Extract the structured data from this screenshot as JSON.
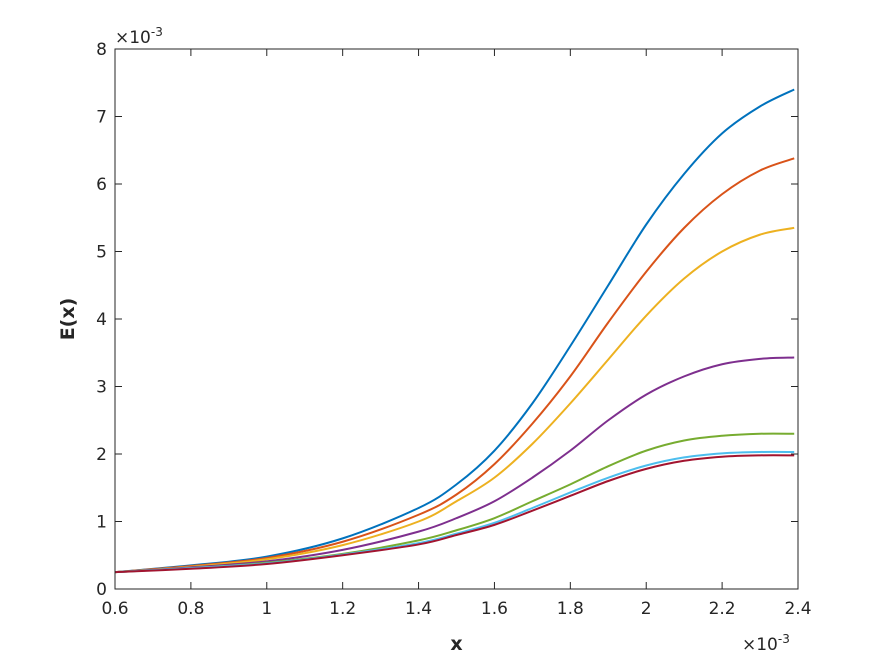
{
  "chart_data": {
    "type": "line",
    "title": "",
    "xlabel": "x",
    "ylabel": "E(x)",
    "x_multiplier": "×10",
    "x_exponent": "-3",
    "y_multiplier": "×10",
    "y_exponent": "-3",
    "xlim": [
      0.6,
      2.4
    ],
    "ylim": [
      0,
      8
    ],
    "x_ticks": [
      "0.6",
      "0.8",
      "1",
      "1.2",
      "1.4",
      "1.6",
      "1.8",
      "2",
      "2.2",
      "2.4"
    ],
    "y_ticks": [
      "0",
      "1",
      "2",
      "3",
      "4",
      "5",
      "6",
      "7",
      "8"
    ],
    "grid": false,
    "box": true,
    "x": [
      0.6,
      0.8,
      1.0,
      1.2,
      1.4,
      1.5,
      1.6,
      1.7,
      1.8,
      1.9,
      2.0,
      2.1,
      2.2,
      2.3,
      2.39
    ],
    "series": [
      {
        "color": "#0072BD",
        "values": [
          0.25,
          0.35,
          0.48,
          0.75,
          1.2,
          1.55,
          2.05,
          2.75,
          3.6,
          4.5,
          5.4,
          6.15,
          6.75,
          7.15,
          7.4
        ]
      },
      {
        "color": "#D95319",
        "values": [
          0.25,
          0.34,
          0.46,
          0.7,
          1.1,
          1.4,
          1.85,
          2.45,
          3.15,
          3.95,
          4.7,
          5.35,
          5.85,
          6.2,
          6.38
        ]
      },
      {
        "color": "#EDB120",
        "values": [
          0.25,
          0.33,
          0.44,
          0.65,
          1.0,
          1.3,
          1.65,
          2.15,
          2.75,
          3.4,
          4.05,
          4.6,
          5.0,
          5.25,
          5.35
        ]
      },
      {
        "color": "#7E2F8E",
        "values": [
          0.25,
          0.32,
          0.41,
          0.58,
          0.85,
          1.05,
          1.3,
          1.65,
          2.05,
          2.5,
          2.88,
          3.15,
          3.33,
          3.41,
          3.43
        ]
      },
      {
        "color": "#77AC30",
        "values": [
          0.25,
          0.31,
          0.39,
          0.52,
          0.72,
          0.87,
          1.05,
          1.3,
          1.55,
          1.82,
          2.05,
          2.2,
          2.27,
          2.3,
          2.3
        ]
      },
      {
        "color": "#4DBEEE",
        "values": [
          0.25,
          0.31,
          0.38,
          0.51,
          0.68,
          0.82,
          0.98,
          1.2,
          1.43,
          1.65,
          1.83,
          1.95,
          2.01,
          2.03,
          2.03
        ]
      },
      {
        "color": "#A2142F",
        "values": [
          0.25,
          0.3,
          0.37,
          0.5,
          0.66,
          0.8,
          0.95,
          1.16,
          1.38,
          1.6,
          1.78,
          1.9,
          1.96,
          1.98,
          1.98
        ]
      }
    ]
  }
}
